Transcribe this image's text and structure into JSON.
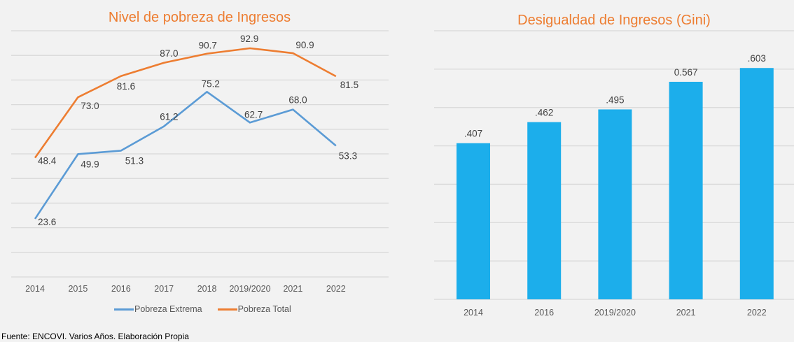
{
  "chart_data": [
    {
      "type": "line",
      "title": "Nivel de pobreza de Ingresos",
      "xlabel": "",
      "ylabel": "",
      "categories": [
        "2014",
        "2015",
        "2016",
        "2017",
        "2018",
        "2019/2020",
        "2021",
        "2022"
      ],
      "series": [
        {
          "name": "Pobreza Extrema",
          "color": "#5b9bd5",
          "values": [
            23.6,
            49.9,
            51.3,
            61.2,
            75.2,
            62.7,
            68.0,
            53.3
          ],
          "labels": [
            "23.6",
            "49.9",
            "51.3",
            "61.2",
            "75.2",
            "62.7",
            "68.0",
            "53.3"
          ]
        },
        {
          "name": "Pobreza Total",
          "color": "#ed7d31",
          "values": [
            48.4,
            73.0,
            81.6,
            87.0,
            90.7,
            92.9,
            90.9,
            81.5
          ],
          "labels": [
            "48.4",
            "73.0",
            "81.6",
            "87.0",
            "90.7",
            "92.9",
            "90.9",
            "81.5"
          ]
        }
      ],
      "ylim": [
        0,
        100
      ],
      "ytick_step": 10,
      "y_axis_labels_visible": false,
      "grid": true,
      "legend": "bottom"
    },
    {
      "type": "bar",
      "title": "Desigualdad de Ingresos (Gini)",
      "xlabel": "",
      "ylabel": "",
      "categories": [
        "2014",
        "2016",
        "2019/2020",
        "2021",
        "2022"
      ],
      "values": [
        0.407,
        0.462,
        0.495,
        0.567,
        0.603
      ],
      "labels": [
        ".407",
        ".462",
        ".495",
        "0.567",
        ".603"
      ],
      "color": "#1caeeb",
      "ylim": [
        0,
        0.7
      ],
      "ytick_step": 0.1,
      "y_axis_labels_visible": false,
      "grid": true,
      "legend": "none"
    }
  ],
  "source_note": "Fuente: ENCOVI. Varios Años. Elaboración Propia"
}
